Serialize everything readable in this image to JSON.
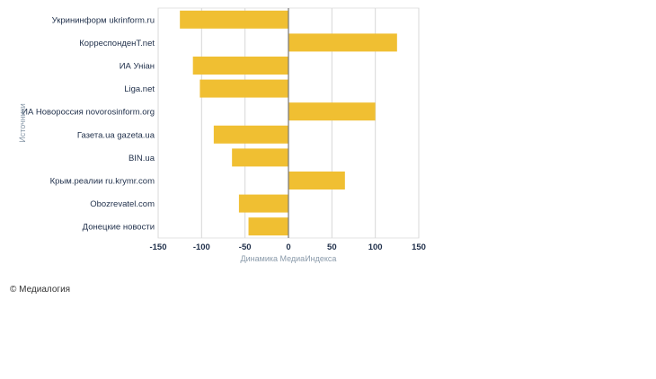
{
  "chart_data": {
    "type": "bar",
    "orientation": "horizontal",
    "categories": [
      "Укрининформ ukrinform.ru",
      "КорреспонденТ.net",
      "ИА Уніан",
      "Liga.net",
      "ИА Новороссия novorosinform.org",
      "Газета.ua gazeta.ua",
      "BIN.ua",
      "Крым.реалии ru.krymr.com",
      "Obozrevatel.com",
      "Донецкие новости"
    ],
    "values": [
      -125,
      125,
      -110,
      -102,
      100,
      -86,
      -65,
      65,
      -57,
      -46
    ],
    "xlabel": "Динамика МедиаИндекса",
    "ylabel": "Источники",
    "xlim": [
      -150,
      150
    ],
    "xticks": [
      -150,
      -100,
      -50,
      0,
      50,
      100,
      150
    ],
    "grid": true,
    "bar_color": "#f0bf32"
  },
  "footer": {
    "copyright": "© Медиалогия"
  }
}
